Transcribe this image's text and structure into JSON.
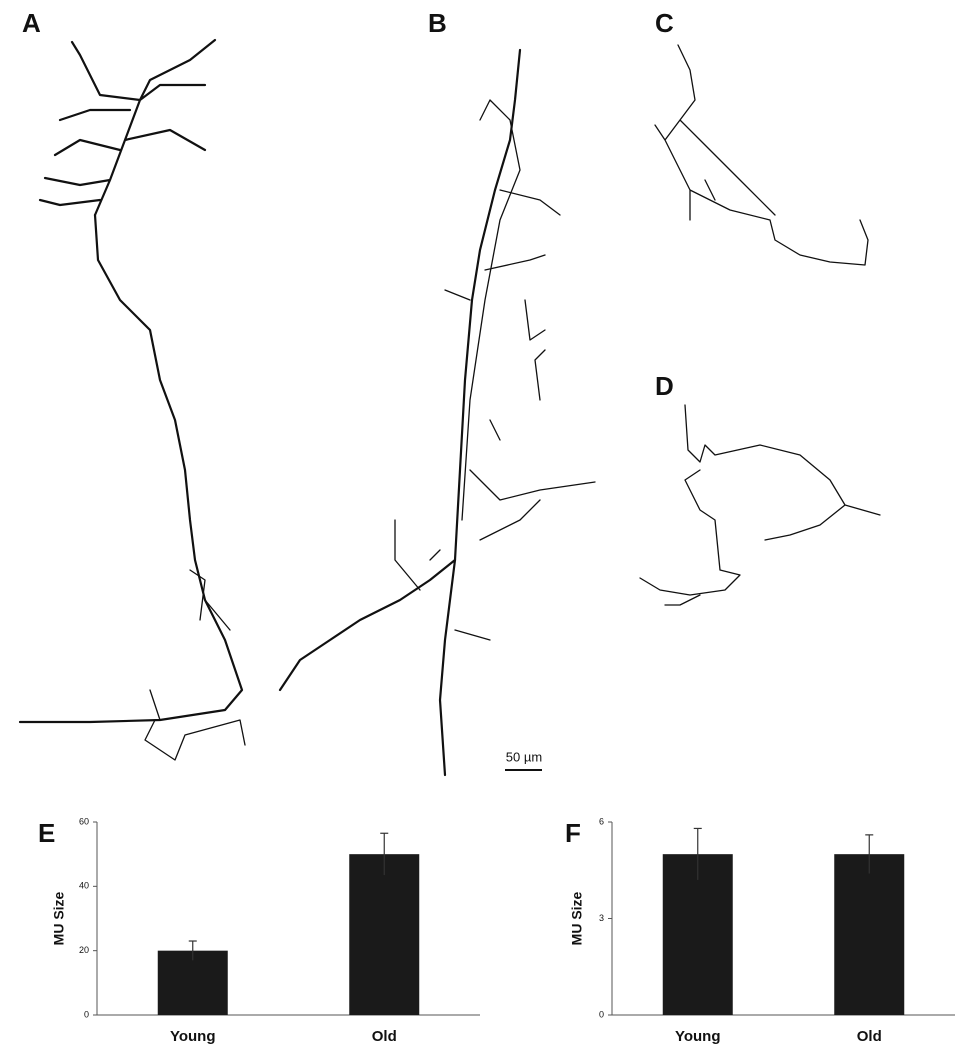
{
  "panel_labels": [
    "A",
    "B",
    "C",
    "D"
  ],
  "scale_bar": "50 µm",
  "chart_data": [
    {
      "type": "bar",
      "label": "E",
      "ylabel": "MU Size",
      "categories": [
        "Young",
        "Old"
      ],
      "values": [
        20,
        50
      ],
      "errors": [
        3,
        6.5
      ],
      "color": "#1a1a1a",
      "ylim": [
        0,
        60
      ],
      "yticks": [
        0,
        20,
        40,
        60
      ]
    },
    {
      "type": "bar",
      "label": "F",
      "ylabel": "MU Size",
      "categories": [
        "Young",
        "Old"
      ],
      "values": [
        5,
        5
      ],
      "errors": [
        0.8,
        0.6
      ],
      "color": "#1a1a1a",
      "ylim": [
        0,
        6
      ],
      "yticks": [
        0,
        3,
        6
      ]
    }
  ]
}
